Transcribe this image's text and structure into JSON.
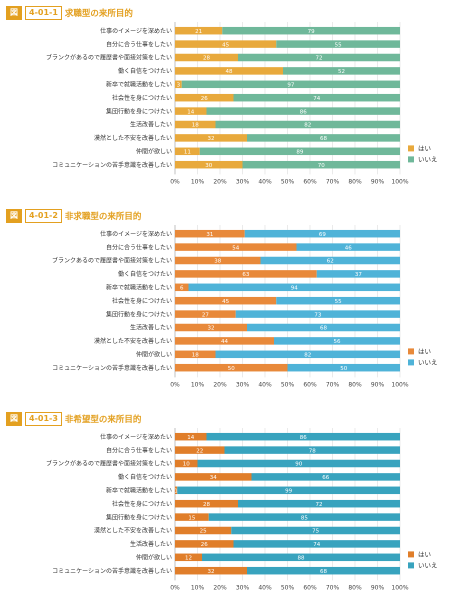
{
  "chart_data": [
    {
      "type": "bar",
      "stacked": true,
      "orientation": "horizontal",
      "badge": "図",
      "number": "4-01-1",
      "title": "求職型の来所目的",
      "categories": [
        "仕事のイメージを深めたい",
        "自分に合う仕事をしたい",
        "ブランクがあるので履歴書や面接対策をしたい",
        "働く自信をつけたい",
        "新卒で就職活動をしたい",
        "社会性を身につけたい",
        "集団行動を身につけたい",
        "生活改善したい",
        "漠然とした不安を改善したい",
        "仲間が欲しい",
        "コミュニケーションの苦手意識を改善したい"
      ],
      "series": [
        {
          "name": "はい",
          "color": "#e8a93c",
          "values": [
            21,
            45,
            28,
            48,
            3,
            26,
            14,
            18,
            32,
            11,
            30
          ]
        },
        {
          "name": "いいえ",
          "color": "#6fb89a",
          "values": [
            79,
            55,
            72,
            52,
            97,
            74,
            86,
            82,
            68,
            89,
            70
          ]
        }
      ],
      "xticks": [
        "0%",
        "10%",
        "20%",
        "30%",
        "40%",
        "50%",
        "60%",
        "70%",
        "80%",
        "90%",
        "100%"
      ],
      "xlim": [
        0,
        100
      ],
      "legend_position": "right-bottom",
      "theme": {
        "accent": "#e3a020"
      }
    },
    {
      "type": "bar",
      "stacked": true,
      "orientation": "horizontal",
      "badge": "図",
      "number": "4-01-2",
      "title": "非求職型の来所目的",
      "categories": [
        "仕事のイメージを深めたい",
        "自分に合う仕事をしたい",
        "ブランクあるので履歴書や面接対策をしたい",
        "働く自信をつけたい",
        "新卒で就職活動をしたい",
        "社会性を身につけたい",
        "集団行動を身につけたい",
        "生活改善したい",
        "漠然とした不安を改善したい",
        "仲間が欲しい",
        "コミュニケーションの苦手意識を改善したい"
      ],
      "series": [
        {
          "name": "はい",
          "color": "#e8893a",
          "values": [
            31,
            54,
            38,
            63,
            6,
            45,
            27,
            32,
            44,
            18,
            50
          ]
        },
        {
          "name": "いいえ",
          "color": "#4fb3d8",
          "values": [
            69,
            46,
            62,
            37,
            94,
            55,
            73,
            68,
            56,
            82,
            50
          ]
        }
      ],
      "xticks": [
        "0%",
        "10%",
        "20%",
        "30%",
        "40%",
        "50%",
        "60%",
        "70%",
        "80%",
        "90%",
        "100%"
      ],
      "xlim": [
        0,
        100
      ],
      "legend_position": "right-bottom",
      "theme": {
        "accent": "#e3a020"
      }
    },
    {
      "type": "bar",
      "stacked": true,
      "orientation": "horizontal",
      "badge": "図",
      "number": "4-01-3",
      "title": "非希望型の来所目的",
      "categories": [
        "仕事のイメージを深めたい",
        "自分に合う仕事をしたい",
        "ブランクがあるので履歴書や面接対策をしたい",
        "働く自信をつけたい",
        "新卒で就職活動をしたい",
        "社会性を身につけたい",
        "集団行動を身につけたい",
        "漠然とした不安を改善したい",
        "生活改善したい",
        "仲間が欲しい",
        "コミュニケーションの苦手意識を改善したい"
      ],
      "series": [
        {
          "name": "はい",
          "color": "#e07e2a",
          "values": [
            14,
            22,
            10,
            34,
            1,
            28,
            15,
            25,
            26,
            12,
            32
          ]
        },
        {
          "name": "いいえ",
          "color": "#38a3be",
          "values": [
            86,
            78,
            90,
            66,
            99,
            72,
            85,
            75,
            74,
            88,
            68
          ]
        }
      ],
      "xticks": [
        "0%",
        "10%",
        "20%",
        "30%",
        "40%",
        "50%",
        "60%",
        "70%",
        "80%",
        "90%",
        "100%"
      ],
      "xlim": [
        0,
        100
      ],
      "legend_position": "right-bottom",
      "theme": {
        "accent": "#e3a020"
      }
    }
  ]
}
